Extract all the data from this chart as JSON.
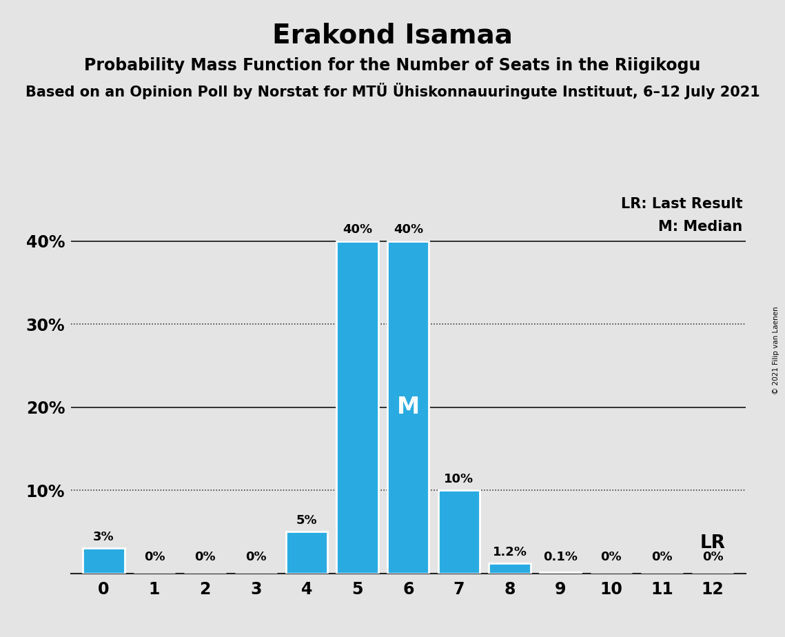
{
  "title": "Erakond Isamaa",
  "subtitle1": "Probability Mass Function for the Number of Seats in the Riigikogu",
  "subtitle2": "Based on an Opinion Poll by Norstat for MTÜ Ühiskonnauuringute Instituut, 6–12 July 2021",
  "copyright": "© 2021 Filip van Laenen",
  "categories": [
    0,
    1,
    2,
    3,
    4,
    5,
    6,
    7,
    8,
    9,
    10,
    11,
    12
  ],
  "values": [
    3.0,
    0.0,
    0.0,
    0.0,
    5.0,
    40.0,
    40.0,
    10.0,
    1.2,
    0.1,
    0.0,
    0.0,
    0.0
  ],
  "labels": [
    "3%",
    "0%",
    "0%",
    "0%",
    "5%",
    "40%",
    "40%",
    "10%",
    "1.2%",
    "0.1%",
    "0%",
    "0%",
    "0%"
  ],
  "bar_color": "#29ABE2",
  "median_bar": 6,
  "ylim_max": 46,
  "background_color": "#E4E4E4",
  "legend_lr": "LR: Last Result",
  "legend_m": "M: Median",
  "lr_label": "LR",
  "median_label": "M",
  "title_fontsize": 28,
  "subtitle1_fontsize": 17,
  "subtitle2_fontsize": 15,
  "bar_label_fontsize": 13,
  "axis_tick_fontsize": 17,
  "legend_fontsize": 15,
  "median_label_fontsize": 24,
  "lr_label_fontsize": 19,
  "copyright_fontsize": 7.5,
  "yticks": [
    0,
    10,
    20,
    30,
    40
  ],
  "ytick_labels": [
    "",
    "10%",
    "20%",
    "30%",
    "40%"
  ],
  "solid_hlines": [
    20,
    40
  ],
  "dotted_hlines": [
    10,
    30
  ]
}
